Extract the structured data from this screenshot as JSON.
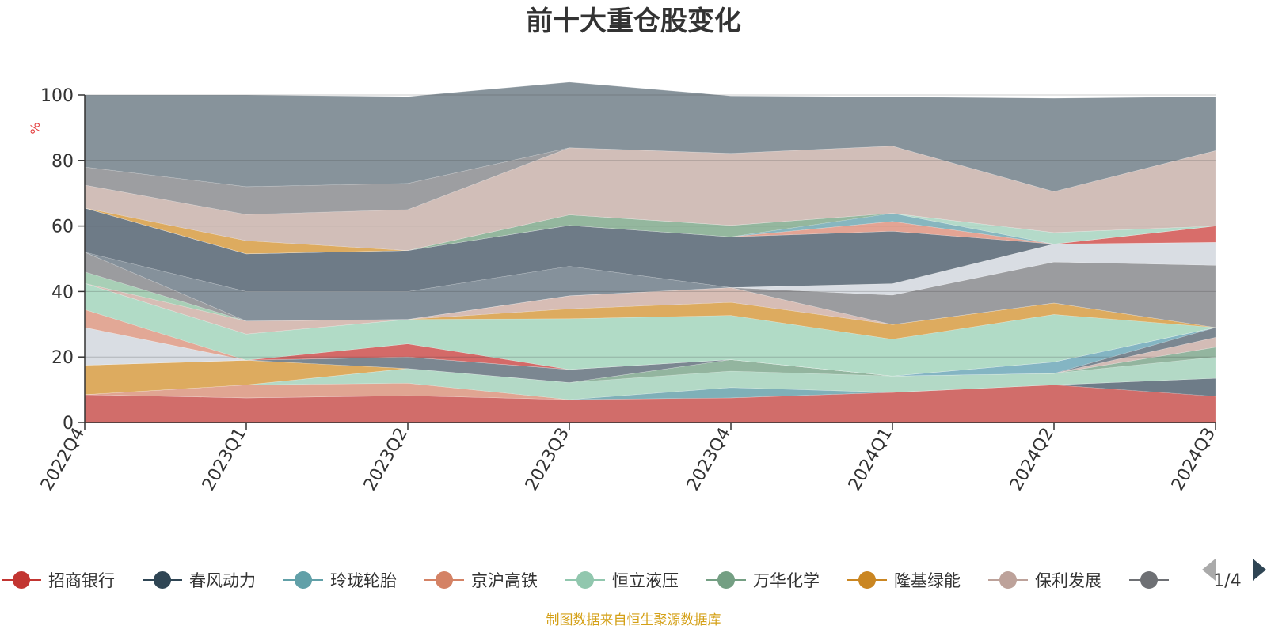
{
  "chart_data": {
    "type": "area",
    "stacked": true,
    "title": "前十大重仓股变化",
    "ylabel": "%",
    "ylim": [
      0,
      100
    ],
    "y_ticks": [
      "0",
      "20",
      "40",
      "60",
      "80",
      "100"
    ],
    "categories": [
      "2022Q4",
      "2023Q1",
      "2023Q2",
      "2023Q3",
      "2023Q4",
      "2024Q1",
      "2024Q2",
      "2024Q3"
    ],
    "grid": true,
    "legend_position": "bottom",
    "series": [
      {
        "values": [
          8.5,
          7.5,
          8.2,
          7.0,
          7.5,
          9.2,
          11.5,
          8.0
        ],
        "color": "#d16d6a"
      },
      {
        "values": [
          0,
          0,
          0,
          0,
          0,
          0,
          0,
          5.5
        ],
        "color": "#6e7c88"
      },
      {
        "values": [
          0,
          0,
          0,
          0,
          3.2,
          0,
          0,
          0
        ],
        "color": "#7fb0b8"
      },
      {
        "values": [
          0,
          4.0,
          3.8,
          0,
          0,
          0,
          0,
          0
        ],
        "color": "#e0a592"
      },
      {
        "values": [
          0,
          0,
          4.5,
          5.2,
          5.0,
          5.0,
          3.5,
          6.5
        ],
        "color": "#b3d9c6"
      },
      {
        "values": [
          0,
          0,
          0,
          0,
          3.5,
          0,
          0,
          3.0
        ],
        "color": "#93b59f"
      },
      {
        "values": [
          9.0,
          7.5,
          0,
          0,
          0,
          0,
          0,
          0
        ],
        "color": "#ddab5f"
      },
      {
        "values": [
          0,
          0,
          0,
          0,
          0,
          0,
          0,
          3.0
        ],
        "color": "#d3bcb6"
      },
      {
        "values": [
          0,
          0,
          3.5,
          4.0,
          0,
          0,
          0,
          3.0
        ],
        "color": "#7b8791"
      },
      {
        "values": [
          0,
          0,
          0,
          0,
          0,
          0,
          3.5,
          0
        ],
        "color": "#84b5c3"
      },
      {
        "values": [
          11.5,
          0,
          0,
          0,
          0,
          0,
          0,
          0
        ],
        "color": "#d9dde3"
      },
      {
        "values": [
          0,
          0,
          4.0,
          0,
          0,
          0,
          0,
          0
        ],
        "color": "#d46a68"
      },
      {
        "values": [
          5.5,
          0,
          0,
          0,
          0,
          0,
          0,
          0
        ],
        "color": "#e2a896"
      },
      {
        "values": [
          8.0,
          8.0,
          7.5,
          15.5,
          13.5,
          11.2,
          14.5,
          0
        ],
        "color": "#b1dbc6"
      },
      {
        "values": [
          0,
          0,
          0,
          3.0,
          4.0,
          4.5,
          3.5,
          0
        ],
        "color": "#ddab5f"
      },
      {
        "values": [
          0,
          4.0,
          0,
          4.0,
          4.5,
          0,
          0,
          0
        ],
        "color": "#d7bdb5"
      },
      {
        "values": [
          3.5,
          0,
          0,
          0,
          0,
          0,
          0,
          0
        ],
        "color": "#a8cfb6"
      },
      {
        "values": [
          6.0,
          0,
          0,
          0,
          0,
          9.0,
          12.5,
          19.0
        ],
        "color": "#9b9c9f"
      },
      {
        "values": [
          0,
          0,
          0,
          0,
          0,
          3.5,
          5.5,
          7.0
        ],
        "color": "#d9dde3"
      },
      {
        "values": [
          0,
          9.0,
          8.5,
          9.0,
          0,
          0,
          0,
          0
        ],
        "color": "#85919b"
      },
      {
        "values": [
          13.5,
          11.5,
          12.5,
          12.5,
          15.5,
          16.0,
          0,
          0
        ],
        "color": "#6e7b87"
      },
      {
        "values": [
          0,
          0,
          0,
          0,
          0,
          0,
          0,
          5.0
        ],
        "color": "#d86d6a"
      },
      {
        "values": [
          0,
          0,
          0,
          0,
          0,
          3.0,
          0,
          0
        ],
        "color": "#e3a494"
      },
      {
        "values": [
          0,
          0,
          0,
          0,
          0,
          2.5,
          0,
          0
        ],
        "color": "#87b6bf"
      },
      {
        "values": [
          0,
          0,
          0,
          3.2,
          3.5,
          0,
          0,
          0
        ],
        "color": "#94b79e"
      },
      {
        "values": [
          0,
          0,
          0,
          0,
          0,
          0,
          3.5,
          0
        ],
        "color": "#b4dac9"
      },
      {
        "values": [
          0,
          4.0,
          0,
          0,
          0,
          0,
          0,
          0
        ],
        "color": "#ddab5f"
      },
      {
        "values": [
          7.0,
          8.0,
          12.5,
          20.5,
          22.0,
          20.5,
          12.5,
          23.0
        ],
        "color": "#d1beb8"
      },
      {
        "values": [
          5.5,
          8.5,
          8.0,
          0,
          0,
          0,
          0,
          0
        ],
        "color": "#9d9ea1"
      },
      {
        "values": [
          22.0,
          28.0,
          26.5,
          20.0,
          17.5,
          15.0,
          28.5,
          16.5
        ],
        "color": "#87939b"
      }
    ],
    "legend": [
      {
        "label": "招商银行",
        "color": "#c23531"
      },
      {
        "label": "春风动力",
        "color": "#2f4554"
      },
      {
        "label": "玲珑轮胎",
        "color": "#61a0a8"
      },
      {
        "label": "京沪高铁",
        "color": "#d48265"
      },
      {
        "label": "恒立液压",
        "color": "#91c7ae"
      },
      {
        "label": "万华化学",
        "color": "#749f83"
      },
      {
        "label": "隆基绿能",
        "color": "#ca8622"
      },
      {
        "label": "保利发展",
        "color": "#bda29a"
      },
      {
        "label": "",
        "color": "#6e7074"
      }
    ],
    "pager": "1/4",
    "source_note": "制图数据来自恒生聚源数据库"
  },
  "colors": {
    "title": "#333333",
    "axis": "#333333",
    "ylabel": "#e33e3e",
    "note": "#d4a017",
    "grid": "rgba(60,60,60,0.25)",
    "pager_prev": "#aaaaaa",
    "pager_next": "#2f4554"
  }
}
